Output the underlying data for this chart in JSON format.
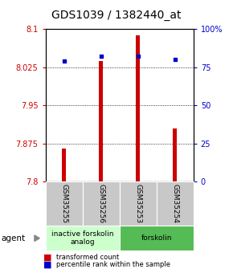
{
  "title": "GDS1039 / 1382440_at",
  "samples": [
    "GSM35255",
    "GSM35256",
    "GSM35253",
    "GSM35254"
  ],
  "bar_values": [
    7.865,
    8.037,
    8.088,
    7.905
  ],
  "bar_baseline": 7.8,
  "percentile_values": [
    79,
    82,
    82,
    80
  ],
  "ylim_left": [
    7.8,
    8.1
  ],
  "ylim_right": [
    0,
    100
  ],
  "yticks_left": [
    7.8,
    7.875,
    7.95,
    8.025,
    8.1
  ],
  "yticks_right": [
    0,
    25,
    50,
    75,
    100
  ],
  "ytick_labels_left": [
    "7.8",
    "7.875",
    "7.95",
    "8.025",
    "8.1"
  ],
  "ytick_labels_right": [
    "0",
    "25",
    "50",
    "75",
    "100%"
  ],
  "bar_color": "#cc0000",
  "percentile_color": "#0000cc",
  "groups": [
    {
      "label": "inactive forskolin\nanalog",
      "color": "#ccffcc",
      "start": 0,
      "end": 2
    },
    {
      "label": "forskolin",
      "color": "#55bb55",
      "start": 2,
      "end": 4
    }
  ],
  "agent_label": "agent",
  "legend_bar_label": "transformed count",
  "legend_pct_label": "percentile rank within the sample",
  "title_fontsize": 10,
  "tick_fontsize": 7,
  "label_fontsize": 6.5,
  "bar_width": 0.12
}
